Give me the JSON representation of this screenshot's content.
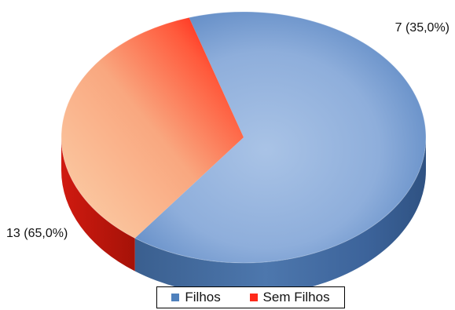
{
  "chart_data": {
    "type": "pie",
    "style": "3d",
    "title": "",
    "series": [
      {
        "name": "Filhos",
        "value": 13,
        "percent": 65.0,
        "label": "13 (65,0%)",
        "color": "#4f81bd"
      },
      {
        "name": "Sem Filhos",
        "value": 7,
        "percent": 35.0,
        "label": "7 (35,0%)",
        "color": "#ff2a1a"
      }
    ],
    "legend": {
      "position": "bottom",
      "items": [
        "Filhos",
        "Sem Filhos"
      ]
    }
  }
}
